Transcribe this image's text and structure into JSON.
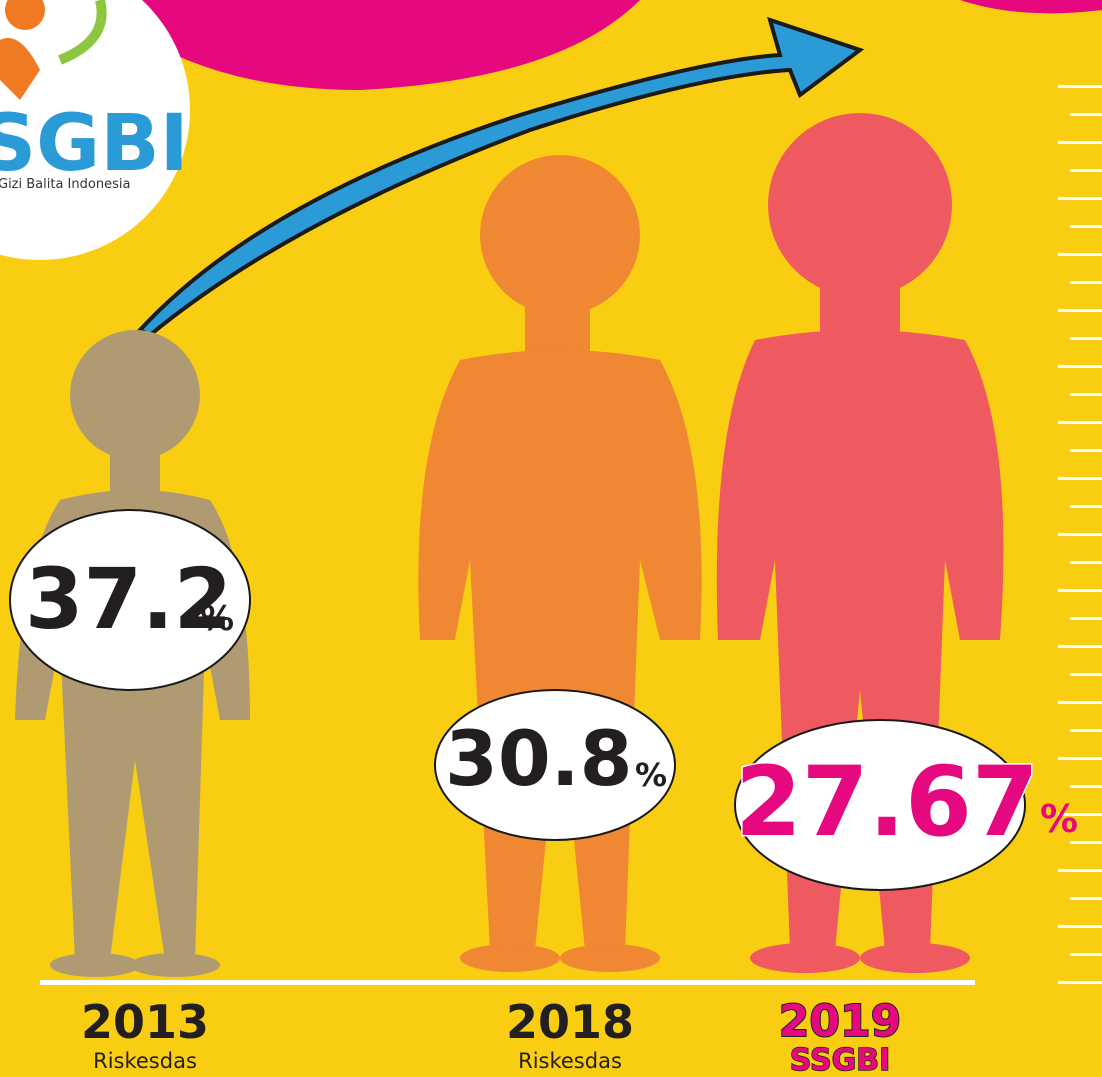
{
  "logo": {
    "title": "SGBI",
    "subtitle": "Gizi Balita Indonesia"
  },
  "items": [
    {
      "value": "37.2",
      "unit": "%",
      "year": "2013",
      "source": "Riskesdas"
    },
    {
      "value": "30.8",
      "unit": "%",
      "year": "2018",
      "source": "Riskesdas"
    },
    {
      "value": "27.67",
      "unit": "%",
      "year": "2019",
      "source": "SSGBI"
    }
  ]
}
